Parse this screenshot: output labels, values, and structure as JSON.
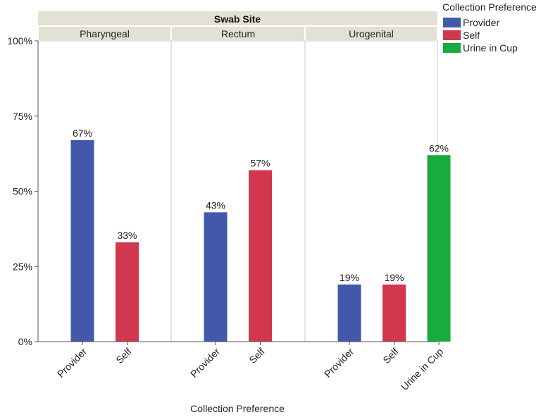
{
  "chart_data": {
    "type": "bar",
    "group_header": "Swab Site",
    "xlabel": "Collection Preference",
    "ylabel": "",
    "ylim": [
      0,
      100
    ],
    "yticks": [
      0,
      25,
      50,
      75,
      100
    ],
    "ytick_labels": [
      "0%",
      "25%",
      "50%",
      "75%",
      "100%"
    ],
    "grid": false,
    "legend": {
      "title": "Collection Preference",
      "placement": "top-right",
      "entries": [
        {
          "name": "Provider",
          "color": "#4259a9"
        },
        {
          "name": "Self",
          "color": "#d1374e"
        },
        {
          "name": "Urine in Cup",
          "color": "#1aab3f"
        }
      ]
    },
    "panels": [
      {
        "name": "Pharyngeal",
        "categories": [
          "Provider",
          "Self"
        ],
        "values": [
          67,
          33
        ],
        "labels": [
          "67%",
          "33%"
        ]
      },
      {
        "name": "Rectum",
        "categories": [
          "Provider",
          "Self"
        ],
        "values": [
          43,
          57
        ],
        "labels": [
          "43%",
          "57%"
        ]
      },
      {
        "name": "Urogenital",
        "categories": [
          "Provider",
          "Self",
          "Urine in Cup"
        ],
        "values": [
          19,
          19,
          62
        ],
        "labels": [
          "19%",
          "19%",
          "62%"
        ]
      }
    ]
  },
  "colors": {
    "header_bg": "#e3e0d4",
    "panel_border": "#c8c8c8",
    "axis": "#555555"
  }
}
